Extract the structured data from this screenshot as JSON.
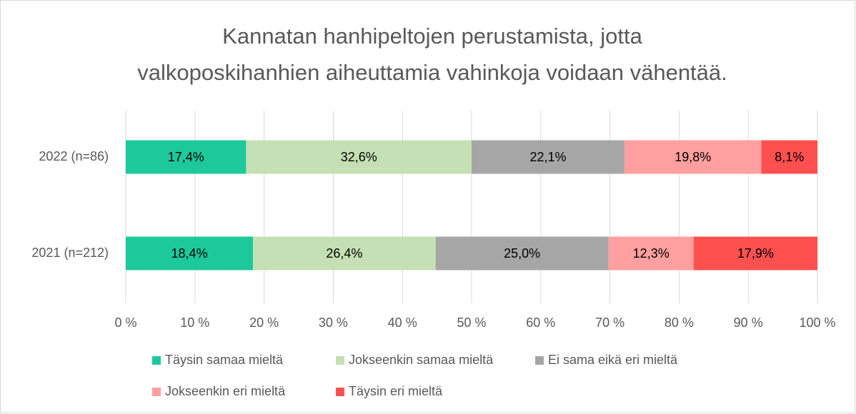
{
  "chart_data": {
    "type": "stacked-bar-horizontal",
    "title": [
      "Kannatan hanhipeltojen perustamista, jotta",
      "valkoposkihanhien aiheuttamia vahinkoja voidaan vähentää."
    ],
    "categories": [
      "2022 (n=86)",
      "2021 (n=212)"
    ],
    "series": [
      {
        "name": "Täysin samaa mieltä",
        "color": "#1dc99b",
        "values": [
          17.4,
          18.4
        ],
        "value_labels": [
          "17,4%",
          "18,4%"
        ]
      },
      {
        "name": "Jokseenkin samaa mieltä",
        "color": "#c5e0b4",
        "values": [
          32.6,
          26.4
        ],
        "value_labels": [
          "32,6%",
          "26,4%"
        ]
      },
      {
        "name": "Ei sama eikä eri mieltä",
        "color": "#a6a6a6",
        "values": [
          22.1,
          25.0
        ],
        "value_labels": [
          "22,1%",
          "25,0%"
        ]
      },
      {
        "name": "Jokseenkin eri mieltä",
        "color": "#ff9f9f",
        "values": [
          19.8,
          12.3
        ],
        "value_labels": [
          "19,8%",
          "12,3%"
        ]
      },
      {
        "name": "Täysin eri mieltä",
        "color": "#ff5050",
        "values": [
          8.1,
          17.9
        ],
        "value_labels": [
          "8,1%",
          "17,9%"
        ]
      }
    ],
    "xlim": [
      0,
      100
    ],
    "xticks": [
      {
        "value": 0,
        "label": "0 %"
      },
      {
        "value": 10,
        "label": "10 %"
      },
      {
        "value": 20,
        "label": "20 %"
      },
      {
        "value": 30,
        "label": "30 %"
      },
      {
        "value": 40,
        "label": "40 %"
      },
      {
        "value": 50,
        "label": "50 %"
      },
      {
        "value": 60,
        "label": "60 %"
      },
      {
        "value": 70,
        "label": "70 %"
      },
      {
        "value": 80,
        "label": "80 %"
      },
      {
        "value": 90,
        "label": "90 %"
      },
      {
        "value": 100,
        "label": "100 %"
      }
    ],
    "grid": true,
    "legend": "bottom"
  }
}
